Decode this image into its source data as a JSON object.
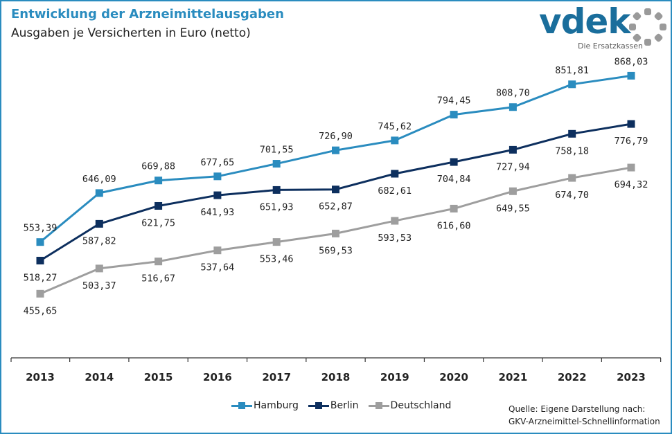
{
  "header": {
    "title": "Entwicklung der Arzneimittelausgaben",
    "subtitle": "Ausgaben je Versicherten in Euro (netto)"
  },
  "logo": {
    "word": "vdek",
    "tagline": "Die Ersatzkassen",
    "colors": {
      "word": "#1a6e9c",
      "dots": "#9a9a9a"
    }
  },
  "source": {
    "line1": "Quelle: Eigene Darstellung nach:",
    "line2": "GKV-Arzneimittel-Schnellinformation"
  },
  "chart_data": {
    "type": "line",
    "x": [
      "2013",
      "2014",
      "2015",
      "2016",
      "2017",
      "2018",
      "2019",
      "2020",
      "2021",
      "2022",
      "2023"
    ],
    "ylim": [
      350,
      900
    ],
    "grid": false,
    "legend_position": "bottom",
    "series": [
      {
        "name": "Hamburg",
        "color": "#2a8cbf",
        "values": [
          553.39,
          646.09,
          669.88,
          677.65,
          701.55,
          726.9,
          745.62,
          794.45,
          808.7,
          851.81,
          868.03
        ],
        "labels": [
          "553,39",
          "646,09",
          "669,88",
          "677,65",
          "701,55",
          "726,90",
          "745,62",
          "794,45",
          "808,70",
          "851,81",
          "868,03"
        ]
      },
      {
        "name": "Berlin",
        "color": "#0d2f5e",
        "values": [
          518.27,
          587.82,
          621.75,
          641.93,
          651.93,
          652.87,
          682.61,
          704.84,
          727.94,
          758.18,
          776.79
        ],
        "labels": [
          "518,27",
          "587,82",
          "621,75",
          "641,93",
          "651,93",
          "652,87",
          "682,61",
          "704,84",
          "727,94",
          "758,18",
          "776,79"
        ]
      },
      {
        "name": "Deutschland",
        "color": "#9e9e9e",
        "values": [
          455.65,
          503.37,
          516.67,
          537.64,
          553.46,
          569.53,
          593.53,
          616.6,
          649.55,
          674.7,
          694.32
        ],
        "labels": [
          "455,65",
          "503,37",
          "516,67",
          "537,64",
          "553,46",
          "569,53",
          "593,53",
          "616,60",
          "649,55",
          "674,70",
          "694,32"
        ]
      }
    ]
  }
}
